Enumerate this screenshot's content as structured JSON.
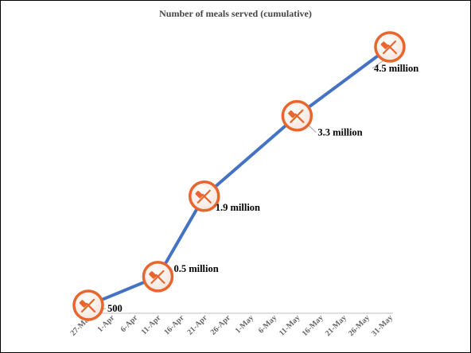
{
  "chart_data": {
    "type": "line",
    "title": "Number of meals served (cumulative)",
    "xlabel": "",
    "ylabel": "",
    "x_ticks": [
      "27-Mar",
      "1-Apr",
      "6-Apr",
      "11-Apr",
      "16-Apr",
      "21-Apr",
      "26-Apr",
      "1-May",
      "6-May",
      "11-May",
      "16-May",
      "21-May",
      "26-May",
      "31-May"
    ],
    "x": [
      "27-Mar",
      "11-Apr",
      "21-Apr",
      "11-May",
      "31-May"
    ],
    "values": [
      500,
      500000,
      1900000,
      3300000,
      4500000
    ],
    "labels": [
      "500",
      "0.5 million",
      "1.9 million",
      "3.3 million",
      "4.5 million"
    ],
    "ylim": [
      0,
      4800000
    ],
    "grid": false,
    "legend": "none",
    "line_color": "#4472C4",
    "marker_icon": "fork-knife-icon",
    "marker_color": "#E8652E"
  }
}
